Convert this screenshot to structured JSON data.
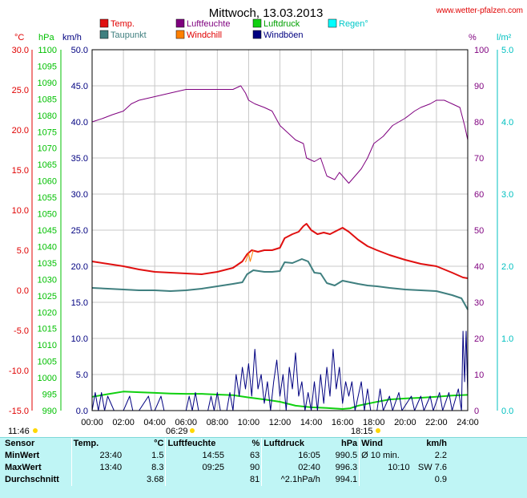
{
  "header": {
    "title": "Mittwoch, 13.03.2013",
    "source": "www.wetter-pfalzen.com"
  },
  "colors": {
    "temp": "#e01010",
    "taupunkt": "#3f7f7f",
    "luftfeuchte": "#7f007f",
    "windchill": "#ff8000",
    "luftdruck": "#10d010",
    "windboeen": "#000080",
    "regen": "#00ffff",
    "grid": "#c8c8c8"
  },
  "legend": [
    {
      "label": "Temp.",
      "color_key": "temp"
    },
    {
      "label": "Taupunkt",
      "color_key": "taupunkt"
    },
    {
      "label": "Luftfeuchte",
      "color_key": "luftfeuchte"
    },
    {
      "label": "Windchill",
      "color_key": "windchill"
    },
    {
      "label": "Luftdruck",
      "color_key": "luftdruck"
    },
    {
      "label": "Windböen",
      "color_key": "windboeen"
    },
    {
      "label": "Regen°",
      "color_key": "regen"
    }
  ],
  "axes": {
    "unit_temp": "°C",
    "unit_hpa": "hPa",
    "unit_kmh": "km/h",
    "unit_pct": "%",
    "unit_rain": "l/m²",
    "temp_ticks": [
      "30.0",
      "25.0",
      "20.0",
      "15.0",
      "10.0",
      "5.0",
      "0.0",
      "-5.0",
      "-10.0",
      "-15.0"
    ],
    "hpa_ticks": [
      "1100",
      "1095",
      "1090",
      "1085",
      "1080",
      "1075",
      "1070",
      "1065",
      "1060",
      "1055",
      "1050",
      "1045",
      "1040",
      "1035",
      "1030",
      "1025",
      "1020",
      "1015",
      "1010",
      "1005",
      "1000",
      "995",
      "990"
    ],
    "kmh_ticks": [
      "50.0",
      "45.0",
      "40.0",
      "35.0",
      "30.0",
      "25.0",
      "20.0",
      "15.0",
      "10.0",
      "5.0",
      "0.0"
    ],
    "pct_ticks": [
      "100",
      "90",
      "80",
      "70",
      "60",
      "50",
      "40",
      "30",
      "20",
      "10",
      "0"
    ],
    "rain_ticks": [
      "5.0",
      "4.0",
      "3.0",
      "2.0",
      "1.0",
      "0.0"
    ],
    "time_ticks": [
      "00:00",
      "02:00",
      "04:00",
      "06:00",
      "08:00",
      "10:00",
      "12:00",
      "14:00",
      "16:00",
      "18:00",
      "20:00",
      "22:00",
      "24:00"
    ],
    "daylen": "11:46",
    "sunrise": "06:29",
    "sunset": "18:15"
  },
  "chart_data": {
    "type": "line",
    "title": "Mittwoch, 13.03.2013",
    "x_unit": "hours",
    "xlim": [
      0,
      24
    ],
    "series": [
      {
        "name": "Luftfeuchte",
        "axis": "%",
        "ylim": [
          0,
          100
        ],
        "points": [
          [
            0,
            80
          ],
          [
            0.7,
            81
          ],
          [
            1.3,
            82
          ],
          [
            2,
            83
          ],
          [
            2.5,
            85
          ],
          [
            3,
            86
          ],
          [
            4,
            87
          ],
          [
            5,
            88
          ],
          [
            6,
            89
          ],
          [
            8,
            89
          ],
          [
            9,
            89
          ],
          [
            9.5,
            90
          ],
          [
            9.8,
            88
          ],
          [
            10,
            86
          ],
          [
            10.4,
            85
          ],
          [
            11,
            84
          ],
          [
            11.5,
            83
          ],
          [
            12,
            79
          ],
          [
            12.5,
            77
          ],
          [
            13,
            75
          ],
          [
            13.5,
            74
          ],
          [
            13.7,
            70
          ],
          [
            14.2,
            69
          ],
          [
            14.6,
            70
          ],
          [
            15,
            65
          ],
          [
            15.5,
            64
          ],
          [
            15.8,
            66
          ],
          [
            16,
            65
          ],
          [
            16.4,
            63
          ],
          [
            16.8,
            65
          ],
          [
            17.2,
            67
          ],
          [
            17.6,
            70
          ],
          [
            18,
            74
          ],
          [
            18.6,
            76
          ],
          [
            19.2,
            79
          ],
          [
            20,
            81
          ],
          [
            20.6,
            83
          ],
          [
            21,
            84
          ],
          [
            21.6,
            85
          ],
          [
            22,
            86
          ],
          [
            22.5,
            86
          ],
          [
            23,
            85
          ],
          [
            23.5,
            84
          ],
          [
            23.8,
            79
          ],
          [
            24,
            75
          ]
        ]
      },
      {
        "name": "Temp.",
        "axis": "°C",
        "ylim": [
          -15,
          30
        ],
        "points": [
          [
            0,
            3.6
          ],
          [
            1,
            3.3
          ],
          [
            2,
            3.0
          ],
          [
            3,
            2.6
          ],
          [
            4,
            2.3
          ],
          [
            5,
            2.2
          ],
          [
            6,
            2.1
          ],
          [
            7,
            2.0
          ],
          [
            8,
            2.3
          ],
          [
            9,
            2.8
          ],
          [
            9.6,
            3.6
          ],
          [
            9.9,
            4.5
          ],
          [
            10.2,
            5.0
          ],
          [
            10.6,
            4.8
          ],
          [
            11,
            5.0
          ],
          [
            11.5,
            5.0
          ],
          [
            12,
            5.3
          ],
          [
            12.3,
            6.5
          ],
          [
            12.8,
            7.0
          ],
          [
            13.2,
            7.3
          ],
          [
            13.5,
            8.0
          ],
          [
            13.7,
            8.3
          ],
          [
            14,
            7.5
          ],
          [
            14.4,
            7.0
          ],
          [
            14.8,
            7.2
          ],
          [
            15.2,
            7.0
          ],
          [
            15.6,
            7.4
          ],
          [
            16,
            7.8
          ],
          [
            16.4,
            7.3
          ],
          [
            17,
            6.3
          ],
          [
            17.6,
            5.5
          ],
          [
            18.2,
            5.0
          ],
          [
            19,
            4.4
          ],
          [
            20,
            3.8
          ],
          [
            21,
            3.3
          ],
          [
            22,
            3.0
          ],
          [
            23,
            2.2
          ],
          [
            23.7,
            1.6
          ],
          [
            24,
            1.5
          ]
        ]
      },
      {
        "name": "Taupunkt",
        "axis": "°C",
        "ylim": [
          -15,
          30
        ],
        "points": [
          [
            0,
            0.3
          ],
          [
            1,
            0.2
          ],
          [
            2,
            0.1
          ],
          [
            3,
            0.0
          ],
          [
            4,
            0.0
          ],
          [
            5,
            -0.1
          ],
          [
            6,
            0.0
          ],
          [
            7,
            0.2
          ],
          [
            8,
            0.5
          ],
          [
            9,
            0.8
          ],
          [
            9.6,
            1.0
          ],
          [
            9.9,
            2.0
          ],
          [
            10.3,
            2.5
          ],
          [
            11,
            2.3
          ],
          [
            11.5,
            2.3
          ],
          [
            12,
            2.4
          ],
          [
            12.3,
            3.5
          ],
          [
            12.8,
            3.4
          ],
          [
            13.4,
            3.9
          ],
          [
            13.8,
            3.6
          ],
          [
            14.2,
            2.2
          ],
          [
            14.6,
            2.1
          ],
          [
            15,
            0.9
          ],
          [
            15.5,
            0.6
          ],
          [
            16,
            1.2
          ],
          [
            16.5,
            1.0
          ],
          [
            17,
            0.8
          ],
          [
            17.6,
            0.6
          ],
          [
            18.2,
            0.5
          ],
          [
            19,
            0.3
          ],
          [
            20,
            0.1
          ],
          [
            21,
            0.0
          ],
          [
            22,
            -0.1
          ],
          [
            23,
            -0.6
          ],
          [
            23.6,
            -1.0
          ],
          [
            24,
            -2.4
          ]
        ]
      },
      {
        "name": "Windchill",
        "axis": "°C",
        "ylim": [
          -15,
          30
        ],
        "points": [
          [
            9.8,
            3.5
          ],
          [
            10,
            4.6
          ],
          [
            10.1,
            3.6
          ],
          [
            10.3,
            5.0
          ]
        ]
      },
      {
        "name": "Luftdruck",
        "axis": "hPa",
        "ylim": [
          990,
          1100
        ],
        "points": [
          [
            0,
            994.2
          ],
          [
            1,
            995.0
          ],
          [
            2,
            995.8
          ],
          [
            3,
            995.6
          ],
          [
            4,
            995.4
          ],
          [
            5,
            995.2
          ],
          [
            6,
            995.1
          ],
          [
            7,
            995.1
          ],
          [
            8,
            994.9
          ],
          [
            9,
            994.7
          ],
          [
            10,
            994.0
          ],
          [
            11,
            993.4
          ],
          [
            12,
            992.7
          ],
          [
            13,
            991.5
          ],
          [
            14,
            991.0
          ],
          [
            15,
            990.8
          ],
          [
            16,
            990.5
          ],
          [
            16.5,
            990.7
          ],
          [
            17,
            991.5
          ],
          [
            18,
            992.5
          ],
          [
            19,
            993.4
          ],
          [
            20,
            993.7
          ],
          [
            21,
            993.9
          ],
          [
            22,
            994.2
          ],
          [
            23,
            994.6
          ],
          [
            24,
            994.8
          ]
        ]
      },
      {
        "name": "Windböen",
        "axis": "km/h",
        "ylim": [
          0,
          50
        ],
        "points": [
          [
            0,
            0
          ],
          [
            0.2,
            2.5
          ],
          [
            0.4,
            0
          ],
          [
            0.6,
            2.5
          ],
          [
            0.8,
            0
          ],
          [
            1,
            2
          ],
          [
            1.4,
            0
          ],
          [
            2,
            0
          ],
          [
            2.4,
            2
          ],
          [
            2.6,
            0
          ],
          [
            3,
            0
          ],
          [
            3.6,
            2
          ],
          [
            3.8,
            0
          ],
          [
            4,
            0
          ],
          [
            4.4,
            2
          ],
          [
            4.6,
            0
          ],
          [
            6,
            0
          ],
          [
            6.2,
            2
          ],
          [
            6.4,
            0
          ],
          [
            6.6,
            2.5
          ],
          [
            6.8,
            0
          ],
          [
            7.4,
            0
          ],
          [
            7.6,
            2
          ],
          [
            7.8,
            0
          ],
          [
            8,
            2.5
          ],
          [
            8.2,
            0
          ],
          [
            8.6,
            0
          ],
          [
            8.8,
            2.5
          ],
          [
            9,
            0
          ],
          [
            9.2,
            5
          ],
          [
            9.4,
            2
          ],
          [
            9.6,
            6
          ],
          [
            9.8,
            3
          ],
          [
            10,
            6.5
          ],
          [
            10.2,
            2
          ],
          [
            10.4,
            8.5
          ],
          [
            10.6,
            3
          ],
          [
            10.8,
            5
          ],
          [
            11,
            1
          ],
          [
            11.2,
            4
          ],
          [
            11.4,
            0
          ],
          [
            11.6,
            4
          ],
          [
            11.8,
            7
          ],
          [
            12,
            2
          ],
          [
            12.2,
            5
          ],
          [
            12.4,
            0
          ],
          [
            12.6,
            6
          ],
          [
            12.8,
            3
          ],
          [
            13,
            8
          ],
          [
            13.2,
            2
          ],
          [
            13.4,
            4
          ],
          [
            13.6,
            0
          ],
          [
            13.8,
            2.5
          ],
          [
            14,
            0
          ],
          [
            14.2,
            4
          ],
          [
            14.4,
            0
          ],
          [
            14.6,
            5
          ],
          [
            14.8,
            1
          ],
          [
            15,
            6
          ],
          [
            15.2,
            2
          ],
          [
            15.4,
            8.5
          ],
          [
            15.6,
            3
          ],
          [
            15.8,
            6
          ],
          [
            16,
            1
          ],
          [
            16.2,
            4
          ],
          [
            16.4,
            2
          ],
          [
            16.6,
            4
          ],
          [
            16.8,
            0
          ],
          [
            17,
            2
          ],
          [
            17.2,
            4
          ],
          [
            17.4,
            0
          ],
          [
            17.6,
            3
          ],
          [
            17.8,
            0
          ],
          [
            18.2,
            0
          ],
          [
            18.4,
            3
          ],
          [
            18.6,
            0
          ],
          [
            19,
            2
          ],
          [
            19.2,
            0
          ],
          [
            19.6,
            2.5
          ],
          [
            19.8,
            0
          ],
          [
            20.4,
            2
          ],
          [
            20.6,
            0
          ],
          [
            21,
            2
          ],
          [
            21.2,
            0
          ],
          [
            21.6,
            2
          ],
          [
            21.8,
            0
          ],
          [
            22.2,
            2.5
          ],
          [
            22.4,
            0
          ],
          [
            22.8,
            2.5
          ],
          [
            23,
            0
          ],
          [
            23.4,
            3
          ],
          [
            23.6,
            0
          ],
          [
            23.7,
            11
          ],
          [
            23.8,
            4
          ],
          [
            23.9,
            11
          ],
          [
            24,
            2
          ]
        ]
      }
    ]
  },
  "stats": {
    "header": [
      "Sensor",
      "Temp.",
      "°C",
      "Luftfeuchte",
      "%",
      "Luftdruck",
      "hPa",
      "Wind",
      "km/h"
    ],
    "rows": [
      [
        "MinWert",
        "23:40",
        "1.5",
        "14:55",
        "63",
        "16:05",
        "990.5",
        "Ø 10 min.",
        "2.2"
      ],
      [
        "MaxWert",
        "13:40",
        "8.3",
        "09:25",
        "90",
        "02:40",
        "996.3",
        "10:10",
        "SW 7.6"
      ],
      [
        "Durchschnitt",
        "",
        "3.68",
        "",
        "81",
        "^2.1hPa/h",
        "994.1",
        "",
        "0.9"
      ]
    ]
  }
}
